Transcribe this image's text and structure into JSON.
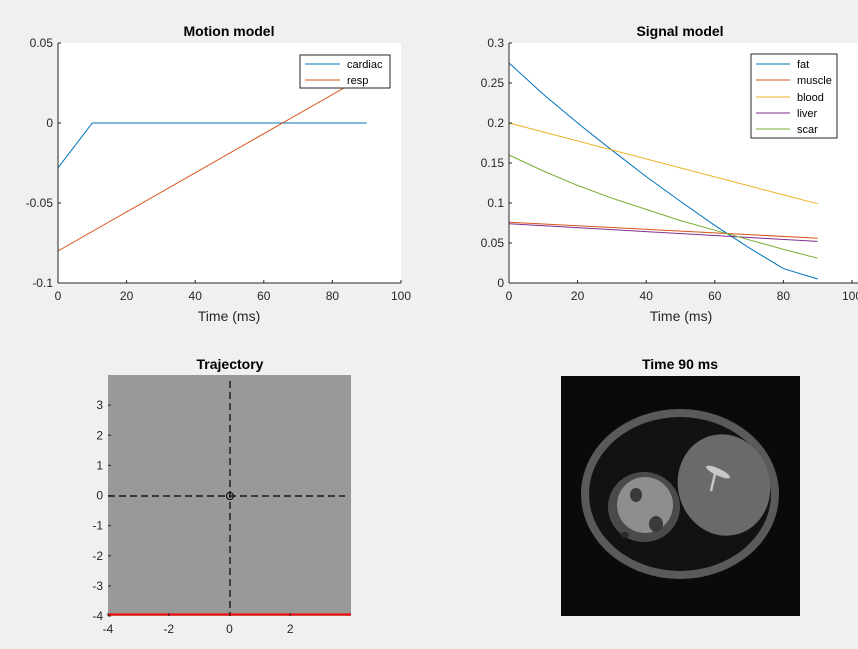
{
  "figure": {
    "background": "#f0f0f0",
    "colors": {
      "cardiac": "#0072bd",
      "resp": "#d95319",
      "fat": "#0072bd",
      "muscle": "#d95319",
      "blood": "#edb120",
      "liver": "#7e2f8e",
      "scar": "#77ac30",
      "trajectory_bg": "#999999",
      "trajectory_line": "#ff0000"
    }
  },
  "chart_data": [
    {
      "id": "motion",
      "type": "line",
      "title": "Motion model",
      "xlabel": "Time (ms)",
      "ylabel": "",
      "xlim": [
        0,
        100
      ],
      "ylim": [
        -0.1,
        0.05
      ],
      "xticks": [
        0,
        20,
        40,
        60,
        80,
        100
      ],
      "xtick_labels": [
        "0",
        "20",
        "40",
        "60",
        "80",
        "100"
      ],
      "yticks": [
        -0.1,
        -0.05,
        0,
        0.05
      ],
      "ytick_labels": [
        "-0.1",
        "-0.05",
        "0",
        "0.05"
      ],
      "legend_position": "top-right",
      "grid": false,
      "series": [
        {
          "name": "cardiac",
          "x": [
            0,
            10,
            90
          ],
          "y": [
            -0.028,
            0,
            0
          ]
        },
        {
          "name": "resp",
          "x": [
            0,
            90
          ],
          "y": [
            -0.08,
            0.03
          ]
        }
      ]
    },
    {
      "id": "signal",
      "type": "line",
      "title": "Signal model",
      "xlabel": "Time (ms)",
      "ylabel": "",
      "xlim": [
        0,
        100
      ],
      "ylim": [
        0,
        0.3
      ],
      "xticks": [
        0,
        20,
        40,
        60,
        80,
        100
      ],
      "xtick_labels": [
        "0",
        "20",
        "40",
        "60",
        "80",
        "100"
      ],
      "yticks": [
        0,
        0.05,
        0.1,
        0.15,
        0.2,
        0.25,
        0.3
      ],
      "ytick_labels": [
        "0",
        "0.05",
        "0.1",
        "0.15",
        "0.2",
        "0.25",
        "0.3"
      ],
      "legend_position": "top-right",
      "grid": false,
      "series": [
        {
          "name": "fat",
          "x": [
            0,
            10,
            20,
            30,
            40,
            50,
            60,
            70,
            80,
            90
          ],
          "y": [
            0.275,
            0.236,
            0.2,
            0.166,
            0.133,
            0.102,
            0.072,
            0.044,
            0.018,
            0.005
          ]
        },
        {
          "name": "muscle",
          "x": [
            0,
            90
          ],
          "y": [
            0.076,
            0.056
          ]
        },
        {
          "name": "blood",
          "x": [
            0,
            90
          ],
          "y": [
            0.2,
            0.099
          ]
        },
        {
          "name": "liver",
          "x": [
            0,
            90
          ],
          "y": [
            0.074,
            0.052
          ]
        },
        {
          "name": "scar",
          "x": [
            0,
            10,
            20,
            30,
            40,
            50,
            60,
            70,
            80,
            90
          ],
          "y": [
            0.16,
            0.14,
            0.122,
            0.106,
            0.092,
            0.078,
            0.066,
            0.054,
            0.042,
            0.031
          ]
        }
      ]
    },
    {
      "id": "trajectory",
      "type": "line",
      "title": "Trajectory",
      "xlabel": "",
      "ylabel": "",
      "xlim": [
        -4,
        4
      ],
      "ylim": [
        -4,
        4
      ],
      "xticks": [
        -4,
        -2,
        0,
        2
      ],
      "xtick_labels": [
        "-4",
        "-2",
        "0",
        "2"
      ],
      "yticks": [
        -4,
        -3,
        -2,
        -1,
        0,
        1,
        2,
        3
      ],
      "ytick_labels": [
        "-4",
        "-3",
        "-2",
        "-1",
        "0",
        "1",
        "2",
        "3"
      ],
      "grid": false,
      "axis_lines": "dashed black crosshair at x=0 and y=0",
      "marker": {
        "x": 0,
        "y": 0,
        "shape": "circle"
      },
      "series": [
        {
          "x": [
            -4,
            4
          ],
          "y": [
            -3.95,
            -3.95
          ]
        }
      ]
    }
  ],
  "image_panel": {
    "title": "Time 90 ms",
    "description": "grayscale phantom image"
  }
}
